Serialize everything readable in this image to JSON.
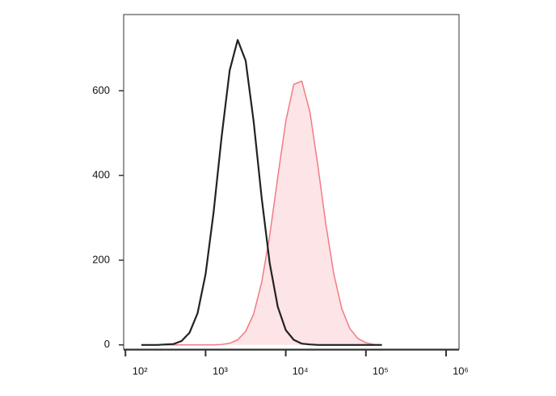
{
  "chart_data": {
    "type": "line",
    "xscale": "log",
    "x": [
      158,
      200,
      251,
      316,
      398,
      501,
      631,
      794,
      1000,
      1259,
      1585,
      1995,
      2512,
      3162,
      3981,
      5012,
      6310,
      7943,
      10000,
      12589,
      15849,
      19953,
      25119,
      31623,
      39811,
      50119,
      63096,
      79433,
      100000,
      125893,
      158489
    ],
    "series": [
      {
        "color": "#222222",
        "fill": null,
        "values": [
          0,
          0,
          0,
          1,
          2,
          9,
          29,
          75,
          167,
          313,
          491,
          648,
          720,
          671,
          527,
          347,
          192,
          90,
          35,
          12,
          3,
          1,
          0,
          0,
          0,
          0,
          0,
          0,
          0,
          0,
          0
        ]
      },
      {
        "color": "#f07c84",
        "fill": "#fde4e6",
        "values": [
          0,
          0,
          0,
          0,
          0,
          0,
          0,
          0,
          0,
          0,
          1,
          4,
          12,
          32,
          73,
          148,
          259,
          396,
          528,
          615,
          623,
          551,
          424,
          285,
          167,
          85,
          38,
          15,
          5,
          1,
          0
        ]
      }
    ],
    "xlim": [
      95,
      1450000
    ],
    "xticks": [
      {
        "value": 100,
        "label": "10²"
      },
      {
        "value": 1000,
        "label": "10³"
      },
      {
        "value": 10000,
        "label": "10⁴"
      },
      {
        "value": 100000,
        "label": "10⁵"
      },
      {
        "value": 1000000,
        "label": "10⁶"
      }
    ],
    "ylim": [
      -10,
      780
    ],
    "yticks": [
      0,
      200,
      400,
      600
    ]
  }
}
